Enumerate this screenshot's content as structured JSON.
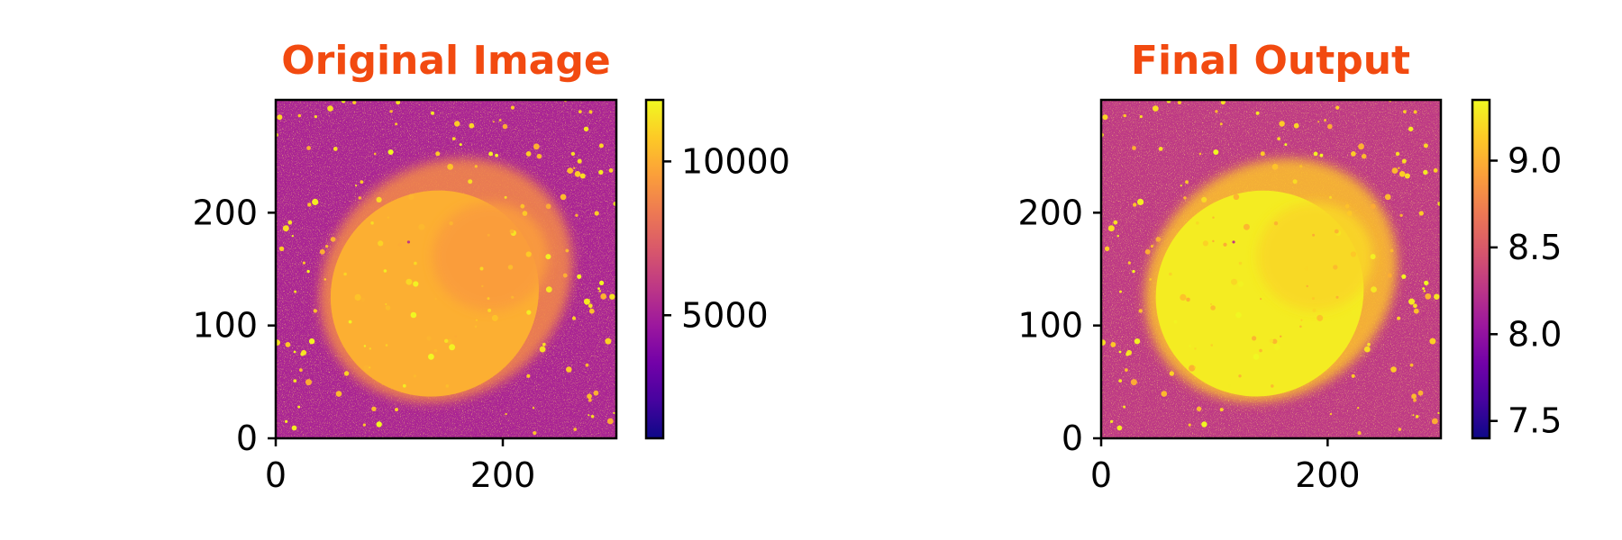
{
  "chart_data": [
    {
      "type": "heatmap",
      "title": "Original Image",
      "xticks": [
        {
          "value": 0,
          "label": "0"
        },
        {
          "value": 200,
          "label": "200"
        }
      ],
      "yticks": [
        {
          "value": 0,
          "label": "0"
        },
        {
          "value": 100,
          "label": "100"
        },
        {
          "value": 200,
          "label": "200"
        }
      ],
      "xlim": [
        0,
        300
      ],
      "ylim": [
        0,
        300
      ],
      "colormap": "plasma",
      "colorbar": {
        "vmin": 1000,
        "vmax": 12000,
        "ticks": [
          {
            "value": 5000,
            "label": "5000"
          },
          {
            "value": 10000,
            "label": "10000"
          }
        ]
      },
      "image": {
        "background_level": 0.38,
        "nebula_level": 0.82,
        "nebula_center": [
          150,
          140
        ]
      }
    },
    {
      "type": "heatmap",
      "title": "Final Output",
      "xticks": [
        {
          "value": 0,
          "label": "0"
        },
        {
          "value": 200,
          "label": "200"
        }
      ],
      "yticks": [
        {
          "value": 0,
          "label": "0"
        },
        {
          "value": 100,
          "label": "100"
        },
        {
          "value": 200,
          "label": "200"
        }
      ],
      "xlim": [
        0,
        300
      ],
      "ylim": [
        0,
        300
      ],
      "colormap": "plasma",
      "colorbar": {
        "vmin": 7.4,
        "vmax": 9.35,
        "ticks": [
          {
            "value": 7.5,
            "label": "7.5"
          },
          {
            "value": 8.0,
            "label": "8.0"
          },
          {
            "value": 8.5,
            "label": "8.5"
          },
          {
            "value": 9.0,
            "label": "9.0"
          }
        ]
      },
      "image": {
        "background_level": 0.45,
        "nebula_level": 0.97,
        "nebula_center": [
          150,
          140
        ]
      }
    }
  ],
  "colors": {
    "title": "#f24a10",
    "axis": "#000000",
    "plasma_stops": [
      "#0d0887",
      "#46039f",
      "#7201a8",
      "#9c179e",
      "#bd3786",
      "#d8576b",
      "#ed7953",
      "#fb9f3a",
      "#fdca26",
      "#f0f921"
    ]
  }
}
